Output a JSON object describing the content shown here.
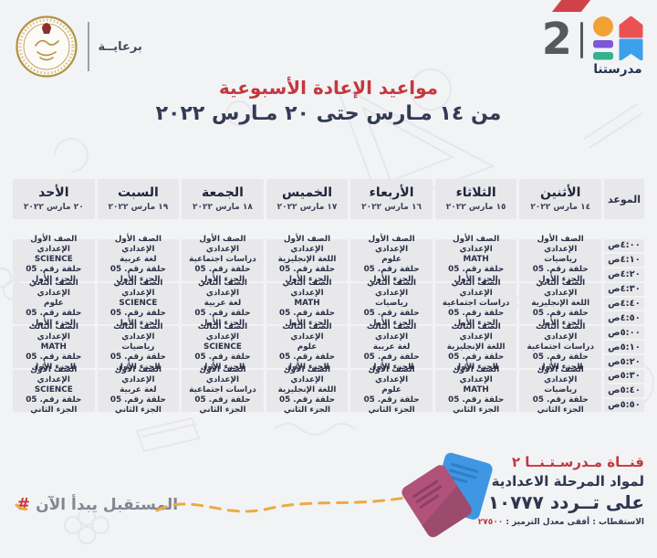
{
  "colors": {
    "accent_red": "#c4383e",
    "navy": "#2e364f",
    "cell_bg": "#e8e8eb",
    "page_bg": "#f2f3f5",
    "logo_orange": "#f0a232",
    "logo_red": "#e95252",
    "logo_purple": "#7e57d6",
    "logo_green": "#35b18d",
    "logo_blue": "#3da0ea",
    "notebook_pink": "#b0527a",
    "notebook_blue": "#3f97e3",
    "dash_orange": "#ecaa44"
  },
  "branding": {
    "patronage": "برعايــة",
    "channel_number": "2",
    "channel_name": "مدرستنا"
  },
  "heading": {
    "title": "مواعيد الإعادة الأسبوعية",
    "subtitle": "من ١٤ مـارس حتى ٢٠ مـارس ٢٠٢٢"
  },
  "schedule": {
    "time_column_header": "الموعد",
    "times": [
      "٤:٠٠ص",
      "٤:١٠ص",
      "٤:٢٠ص",
      "٤:٣٠ص",
      "٤:٤٠ص",
      "٤:٥٠ص",
      "٥:٠٠ص",
      "٥:١٠ص",
      "٥:٢٠ص",
      "٥:٣٠ص",
      "٥:٤٠ص",
      "٥:٥٠ص"
    ],
    "days": [
      {
        "name": "الأثنين",
        "date": "١٤ مارس ٢٠٢٢",
        "programs": [
          {
            "grade": "الصف الأول الإعدادي",
            "subject": "رياضيات",
            "episode": "حلقة رقم. 05",
            "part": "الجزء الأول"
          },
          {
            "grade": "الصف الثاني الإعدادي",
            "subject": "اللغة الإنجليزية",
            "episode": "حلقة رقم. 05",
            "part": "الجزء الأول"
          },
          {
            "grade": "الصف الثالث الإعدادي",
            "subject": "دراسات اجتماعية",
            "episode": "حلقة رقم. 05",
            "part": "الجزء الأول"
          },
          {
            "grade": "الصف الأول الإعدادي",
            "subject": "رياضيات",
            "episode": "حلقة رقم. 05",
            "part": "الجزء الثاني"
          }
        ]
      },
      {
        "name": "الثلاثاء",
        "date": "١٥ مارس ٢٠٢٢",
        "programs": [
          {
            "grade": "الصف الأول الإعدادي",
            "subject": "MATH",
            "episode": "حلقة رقم. 05",
            "part": "الجزء الأول"
          },
          {
            "grade": "الصف الثاني الإعدادي",
            "subject": "دراسات اجتماعية",
            "episode": "حلقة رقم. 05",
            "part": "الجزء الأول"
          },
          {
            "grade": "الصف الثالث الإعدادي",
            "subject": "اللغة الإنجليزية",
            "episode": "حلقة رقم. 05",
            "part": "الجزء الأول"
          },
          {
            "grade": "الصف الأول الإعدادي",
            "subject": "MATH",
            "episode": "حلقة رقم. 05",
            "part": "الجزء الثاني"
          }
        ]
      },
      {
        "name": "الأربعاء",
        "date": "١٦ مارس ٢٠٢٢",
        "programs": [
          {
            "grade": "الصف الأول الإعدادي",
            "subject": "علوم",
            "episode": "حلقة رقم. 05",
            "part": "الجزء الأول"
          },
          {
            "grade": "الصف الثاني الإعدادي",
            "subject": "رياضيات",
            "episode": "حلقة رقم. 05",
            "part": "الجزء الأول"
          },
          {
            "grade": "الصف الثالث الإعدادي",
            "subject": "لغة عربية",
            "episode": "حلقة رقم. 05",
            "part": "الجزء الأول"
          },
          {
            "grade": "الصف الأول الإعدادي",
            "subject": "علوم",
            "episode": "حلقة رقم. 05",
            "part": "الجزء الثاني"
          }
        ]
      },
      {
        "name": "الخميس",
        "date": "١٧ مارس ٢٠٢٢",
        "programs": [
          {
            "grade": "الصف الأول الإعدادي",
            "subject": "اللغة الإنجليزية",
            "episode": "حلقة رقم. 05",
            "part": "الجزء الأول"
          },
          {
            "grade": "الصف الثاني الإعدادي",
            "subject": "MATH",
            "episode": "حلقة رقم. 05",
            "part": "الجزء الأول"
          },
          {
            "grade": "الصف الثالث الإعدادي",
            "subject": "علوم",
            "episode": "حلقة رقم. 05",
            "part": "الجزء الأول"
          },
          {
            "grade": "الصف الأول الإعدادي",
            "subject": "اللغة الإنجليزية",
            "episode": "حلقة رقم. 05",
            "part": "الجزء الثاني"
          }
        ]
      },
      {
        "name": "الجمعة",
        "date": "١٨ مارس ٢٠٢٢",
        "programs": [
          {
            "grade": "الصف الأول الإعدادي",
            "subject": "دراسات اجتماعية",
            "episode": "حلقة رقم. 05",
            "part": "الجزء الأول"
          },
          {
            "grade": "الصف الثاني الإعدادي",
            "subject": "لغة عربية",
            "episode": "حلقة رقم. 05",
            "part": "الجزء الأول"
          },
          {
            "grade": "الصف الثالث الإعدادي",
            "subject": "SCIENCE",
            "episode": "حلقة رقم. 05",
            "part": "الجزء الأول"
          },
          {
            "grade": "الصف الأول الإعدادي",
            "subject": "دراسات اجتماعية",
            "episode": "حلقة رقم. 05",
            "part": "الجزء الثاني"
          }
        ]
      },
      {
        "name": "السبت",
        "date": "١٩ مارس ٢٠٢٢",
        "programs": [
          {
            "grade": "الصف الأول الإعدادي",
            "subject": "لغة عربية",
            "episode": "حلقة رقم. 05",
            "part": "الجزء الأول"
          },
          {
            "grade": "الصف الثاني الإعدادي",
            "subject": "SCIENCE",
            "episode": "حلقة رقم. 05",
            "part": "الجزء الأول"
          },
          {
            "grade": "الصف الثالث الإعدادي",
            "subject": "رياضيات",
            "episode": "حلقة رقم. 05",
            "part": "الجزء الأول"
          },
          {
            "grade": "الصف الأول الإعدادي",
            "subject": "لغة عربية",
            "episode": "حلقة رقم. 05",
            "part": "الجزء الثاني"
          }
        ]
      },
      {
        "name": "الأحد",
        "date": "٢٠ مارس ٢٠٢٢",
        "programs": [
          {
            "grade": "الصف الأول الإعدادي",
            "subject": "SCIENCE",
            "episode": "حلقة رقم. 05",
            "part": "الجزء الأول"
          },
          {
            "grade": "الصف الثاني الإعدادي",
            "subject": "علوم",
            "episode": "حلقة رقم. 05",
            "part": "الجزء الأول"
          },
          {
            "grade": "الصف الثالث الإعدادي",
            "subject": "MATH",
            "episode": "حلقة رقم. 05",
            "part": "الجزء الأول"
          },
          {
            "grade": "الصف الأول الإعدادي",
            "subject": "SCIENCE",
            "episode": "حلقة رقم. 05",
            "part": "الجزء الثاني"
          }
        ]
      }
    ]
  },
  "footer": {
    "hash": "#",
    "slogan": "المستقبل يبدأ الآن",
    "channel_line": "قنــاة مـدرسـتـنــا ٢",
    "audience_line": "لمواد المرحلة الاعدادية",
    "frequency_line": "على تــردد ١٠٧٧٧",
    "tech_label": "الاستقطاب : أفقى   معدل الترميز :",
    "tech_value": "٢٧٥٠٠"
  }
}
